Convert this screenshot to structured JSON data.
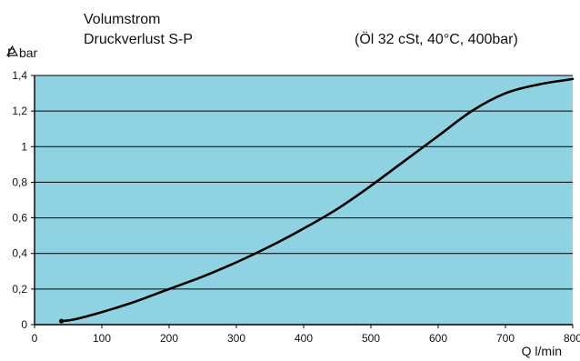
{
  "chart_data": {
    "type": "line",
    "title": [
      "Volumstrom",
      "Druckverlust S-P"
    ],
    "subtitle": "(Öl 32 cSt, 40°C, 400bar)",
    "ylabel": "P bar",
    "ylabel_icon": "delta-triangle-icon",
    "xlabel": "Q l/min",
    "xlim": [
      0,
      800
    ],
    "ylim": [
      0,
      1.4
    ],
    "xticks": [
      0,
      100,
      200,
      300,
      400,
      500,
      600,
      700,
      800
    ],
    "yticks": [
      0,
      0.2,
      0.4,
      0.6,
      0.8,
      1.0,
      1.2,
      1.4
    ],
    "xtick_labels": [
      "0",
      "100",
      "200",
      "300",
      "400",
      "500",
      "600",
      "700",
      "800"
    ],
    "ytick_labels": [
      "0",
      "0,2",
      "0,4",
      "0,6",
      "0,8",
      "1",
      "1,2",
      "1,4"
    ],
    "grid": "horizontal",
    "legend": "none",
    "series": [
      {
        "x": [
          40,
          60,
          100,
          150,
          200,
          250,
          300,
          350,
          400,
          450,
          500,
          550,
          600,
          650,
          700,
          750,
          800
        ],
        "y": [
          0.02,
          0.03,
          0.07,
          0.13,
          0.2,
          0.27,
          0.35,
          0.44,
          0.54,
          0.65,
          0.78,
          0.92,
          1.06,
          1.2,
          1.3,
          1.35,
          1.38
        ]
      }
    ],
    "colors": {
      "plot_background": "#8fd3e3",
      "line": "#000000",
      "grid": "#000000",
      "axis": "#000000"
    }
  }
}
